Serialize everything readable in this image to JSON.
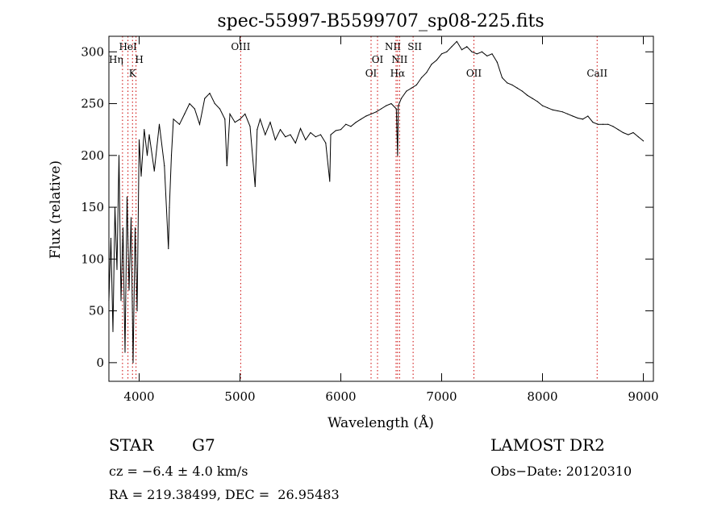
{
  "chart_data": {
    "type": "line",
    "title": "spec-55997-B5599707_sp08-225.fits",
    "xlabel": "Wavelength (Å)",
    "ylabel": "Flux (relative)",
    "xlim": [
      3700,
      9100
    ],
    "ylim": [
      -18,
      315
    ],
    "x_ticks": [
      4000,
      5000,
      6000,
      7000,
      8000,
      9000
    ],
    "y_ticks": [
      0,
      50,
      100,
      150,
      200,
      250,
      300
    ],
    "grid": false,
    "line_color": "#000000",
    "marker_color": "#cc0000",
    "series": [
      {
        "x": [
          3700,
          3720,
          3740,
          3760,
          3780,
          3800,
          3820,
          3840,
          3860,
          3880,
          3900,
          3920,
          3940,
          3960,
          3980,
          4000,
          4020,
          4050,
          4080,
          4100,
          4150,
          4200,
          4250,
          4290,
          4300,
          4320,
          4340,
          4400,
          4450,
          4500,
          4550,
          4600,
          4650,
          4700,
          4750,
          4800,
          4850,
          4870,
          4900,
          4950,
          5000,
          5050,
          5100,
          5150,
          5170,
          5200,
          5250,
          5300,
          5350,
          5400,
          5450,
          5500,
          5550,
          5600,
          5650,
          5700,
          5750,
          5800,
          5850,
          5890,
          5900,
          5950,
          6000,
          6050,
          6100,
          6150,
          6200,
          6250,
          6300,
          6350,
          6400,
          6450,
          6500,
          6550,
          6563,
          6570,
          6600,
          6650,
          6700,
          6750,
          6800,
          6850,
          6900,
          6950,
          7000,
          7050,
          7100,
          7150,
          7200,
          7250,
          7300,
          7350,
          7400,
          7450,
          7500,
          7550,
          7600,
          7650,
          7700,
          7750,
          7800,
          7850,
          7900,
          7950,
          8000,
          8050,
          8100,
          8150,
          8200,
          8250,
          8300,
          8350,
          8400,
          8450,
          8500,
          8550,
          8600,
          8650,
          8700,
          8750,
          8800,
          8850,
          8900,
          8950,
          9000
        ],
        "values": [
          60,
          120,
          30,
          150,
          90,
          200,
          60,
          130,
          10,
          160,
          70,
          140,
          0,
          130,
          50,
          215,
          180,
          225,
          200,
          220,
          185,
          230,
          190,
          110,
          150,
          200,
          235,
          230,
          240,
          250,
          245,
          230,
          255,
          260,
          250,
          245,
          235,
          190,
          240,
          232,
          235,
          240,
          228,
          170,
          225,
          235,
          220,
          232,
          215,
          225,
          218,
          220,
          212,
          226,
          215,
          222,
          218,
          220,
          212,
          175,
          220,
          224,
          225,
          230,
          228,
          232,
          235,
          238,
          240,
          242,
          245,
          248,
          250,
          245,
          200,
          248,
          255,
          262,
          265,
          268,
          275,
          280,
          288,
          292,
          298,
          300,
          305,
          310,
          302,
          305,
          300,
          298,
          300,
          296,
          298,
          290,
          275,
          270,
          268,
          265,
          262,
          258,
          255,
          252,
          248,
          246,
          244,
          243,
          242,
          240,
          238,
          236,
          235,
          238,
          232,
          230,
          230,
          230,
          228,
          225,
          222,
          220,
          222,
          218,
          214
        ]
      }
    ],
    "line_markers": [
      {
        "label": "HeI",
        "x": 3889
      },
      {
        "label": "Hη",
        "x": 3835
      },
      {
        "label": "H",
        "x": 3969
      },
      {
        "label": "K",
        "x": 3934
      },
      {
        "label": "OIII",
        "x": 5007
      },
      {
        "label": "OI",
        "x": 6300
      },
      {
        "label": "OI",
        "x": 6364
      },
      {
        "label": "NII",
        "x": 6548
      },
      {
        "label": "NII",
        "x": 6583
      },
      {
        "label": "Hα",
        "x": 6563
      },
      {
        "label": "SII",
        "x": 6717
      },
      {
        "label": "OII",
        "x": 7320
      },
      {
        "label": "CaII",
        "x": 8542
      }
    ]
  },
  "info": {
    "object_class": "STAR",
    "subclass": "G7",
    "survey": "LAMOST DR2",
    "cz": "cz = −6.4 ± 4.0 km/s",
    "obs_date": "Obs−Date: 20120310",
    "coords": "RA = 219.38499, DEC =  26.95483"
  }
}
